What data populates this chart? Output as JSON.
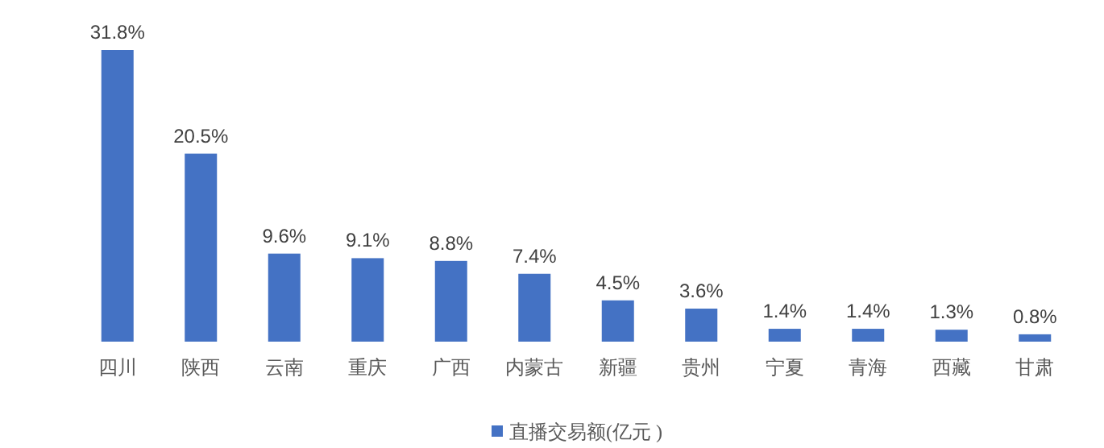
{
  "chart_data": {
    "type": "bar",
    "categories": [
      "四川",
      "陕西",
      "云南",
      "重庆",
      "广西",
      "内蒙古",
      "新疆",
      "贵州",
      "宁夏",
      "青海",
      "西藏",
      "甘肃"
    ],
    "series": [
      {
        "name": "直播交易额(亿元 )",
        "color": "#4472c4",
        "values": [
          31.8,
          20.5,
          9.6,
          9.1,
          8.8,
          7.4,
          4.5,
          3.6,
          1.4,
          1.4,
          1.3,
          0.8
        ],
        "value_labels": [
          "31.8%",
          "20.5%",
          "9.6%",
          "9.1%",
          "8.8%",
          "7.4%",
          "4.5%",
          "3.6%",
          "1.4%",
          "1.4%",
          "1.3%",
          "0.8%"
        ]
      }
    ],
    "legend": "bottom"
  }
}
